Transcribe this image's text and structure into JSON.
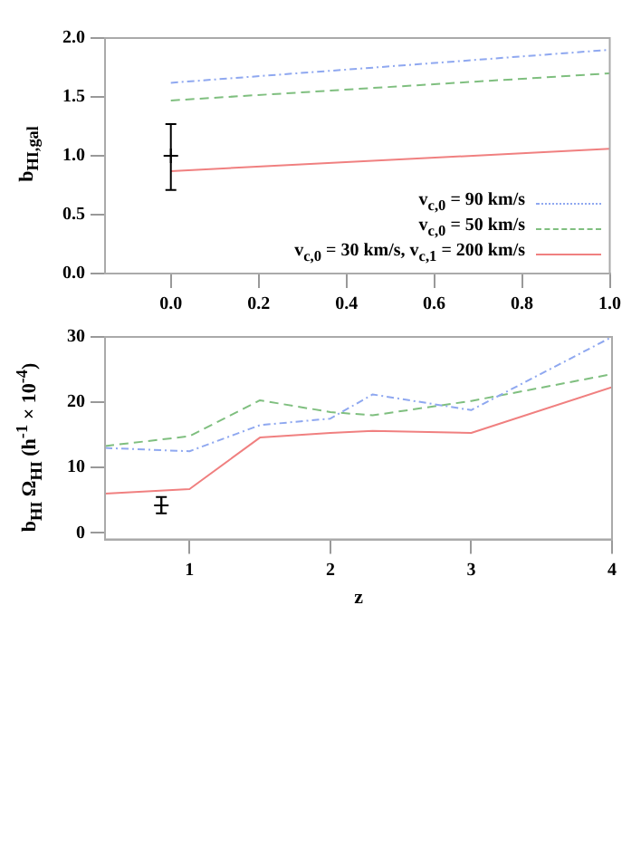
{
  "chart_data": [
    {
      "type": "line",
      "ylabel": "b$_{HI,gal}$",
      "xlim": [
        -0.15,
        1.0
      ],
      "ylim": [
        0,
        2.0
      ],
      "xticks": [
        {
          "value": 0,
          "label": "0.0"
        },
        {
          "value": 0.2,
          "label": "0.2"
        },
        {
          "value": 0.4,
          "label": "0.4"
        },
        {
          "value": 0.6,
          "label": "0.6"
        },
        {
          "value": 0.8,
          "label": "0.8"
        },
        {
          "value": 1.0,
          "label": "1.0"
        }
      ],
      "yticks": [
        {
          "value": 0,
          "label": "0.0"
        },
        {
          "value": 0.5,
          "label": "0.5"
        },
        {
          "value": 1.0,
          "label": "1.0"
        },
        {
          "value": 1.5,
          "label": "1.5"
        },
        {
          "value": 2.0,
          "label": "2.0"
        }
      ],
      "grid": false,
      "legend": "bottom right",
      "series": [
        {
          "name": "v$_{c,0}$ = 90 km/s",
          "color": "#8fa8f0",
          "line_style": "dotted",
          "x": [
            0,
            1
          ],
          "values": [
            1.62,
            1.9
          ]
        },
        {
          "name": "v$_{c,0}$ = 50 km/s",
          "color": "#7fbf7f",
          "line_style": "dashed",
          "x": [
            0,
            1
          ],
          "values": [
            1.47,
            1.7
          ]
        },
        {
          "name": "v$_{c,0}$ = 30 km/s, v$_{c,1}$ = 200 km/s",
          "color": "#f08080",
          "line_style": "solid",
          "x": [
            0,
            1
          ],
          "values": [
            0.87,
            1.06
          ]
        },
        {
          "type": "scatter",
          "color": "#000000",
          "marker": "cross",
          "x": [
            0
          ],
          "values": [
            1.0
          ],
          "errors": [
            [
              0.71,
              1.27
            ]
          ]
        }
      ]
    },
    {
      "type": "line",
      "xlabel": "z",
      "ylabel": "b$_{HI}$ Ω$_{HI}$ (h$^{-1}$ × 10$^{-4}$)",
      "xlim": [
        0.4,
        4
      ],
      "ylim": [
        -1,
        30
      ],
      "xticks": [
        1,
        2,
        3,
        4
      ],
      "yticks": [
        0,
        10,
        20,
        30
      ],
      "grid": false,
      "series": [
        {
          "color": "#8fa8f0",
          "line_style": "dotted",
          "x": [
            0.4,
            1,
            1.5,
            2,
            2.3,
            3,
            4
          ],
          "values": [
            13,
            12.5,
            16.5,
            17.5,
            21.2,
            18.8,
            30
          ]
        },
        {
          "color": "#7fbf7f",
          "line_style": "dashed",
          "x": [
            0.4,
            1,
            1.5,
            2,
            2.3,
            3,
            4
          ],
          "values": [
            13.3,
            14.8,
            20.3,
            18.5,
            18,
            20.2,
            24.3
          ]
        },
        {
          "color": "#f08080",
          "line_style": "solid",
          "x": [
            0.4,
            1,
            1.5,
            2,
            2.3,
            3,
            4
          ],
          "values": [
            6,
            6.7,
            14.6,
            15.3,
            15.6,
            15.3,
            22.3
          ]
        },
        {
          "type": "scatter",
          "color": "#000000",
          "marker": "cross",
          "x": [
            0.8
          ],
          "values": [
            4.2
          ],
          "errors": [
            [
              3,
              5.5
            ]
          ]
        }
      ]
    }
  ]
}
